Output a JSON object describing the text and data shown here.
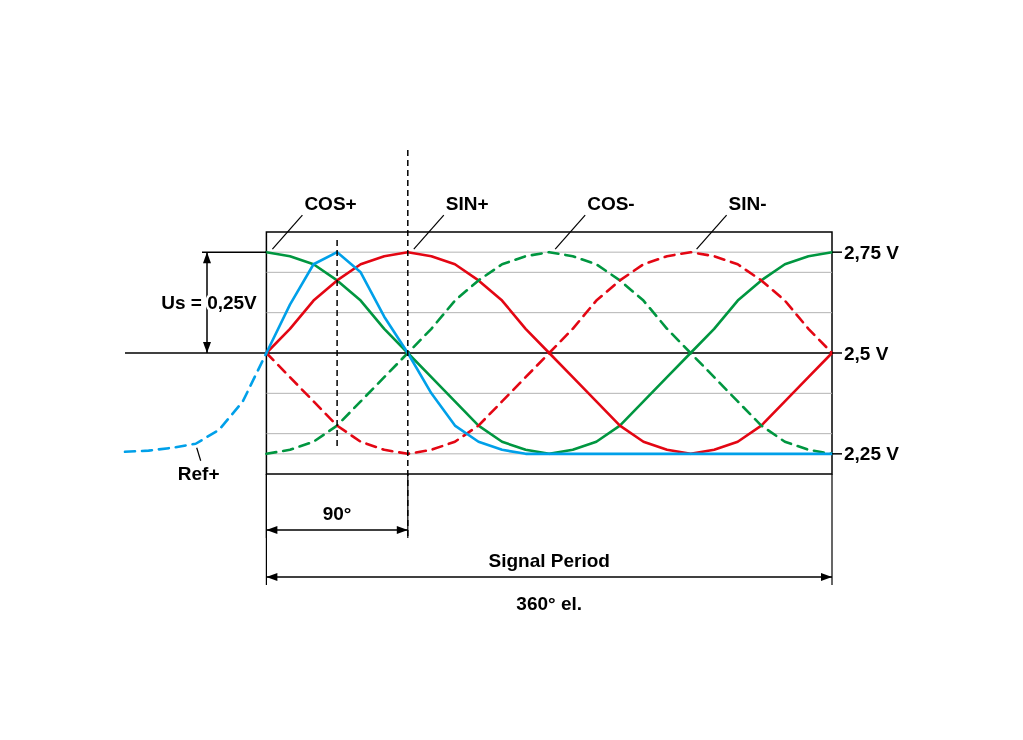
{
  "chart_data": {
    "type": "line",
    "categories": [
      null,
      null,
      null,
      null,
      null,
      null,
      null,
      null,
      null,
      null,
      null,
      null,
      null,
      null,
      null,
      null,
      null,
      null,
      null,
      null,
      null,
      null,
      null,
      null,
      null,
      null,
      null,
      null,
      null,
      null,
      null
    ],
    "ylim": [
      2.2,
      2.8
    ],
    "yticks": [
      {
        "value": 2.25,
        "label": "2,25 V"
      },
      {
        "value": 2.3,
        "label": null
      },
      {
        "value": 2.4,
        "label": null
      },
      {
        "value": 2.5,
        "label": "2,5 V"
      },
      {
        "value": 2.6,
        "label": null
      },
      {
        "value": 2.7,
        "label": null
      },
      {
        "value": 2.75,
        "label": "2,75 V"
      }
    ],
    "tick_labels": "y",
    "grid": "y",
    "series": [
      {
        "name": "COS+",
        "color": "#009640",
        "line_style": "solid",
        "values": [
          null,
          null,
          null,
          null,
          null,
          null,
          2.75,
          2.74,
          2.72,
          2.68,
          2.63,
          2.56,
          2.5,
          2.44,
          2.38,
          2.32,
          2.28,
          2.26,
          2.25,
          2.26,
          2.28,
          2.32,
          2.38,
          2.44,
          2.5,
          2.56,
          2.63,
          2.68,
          2.72,
          2.74,
          2.75
        ]
      },
      {
        "name": "SIN+",
        "color": "#e30613",
        "line_style": "solid",
        "values": [
          null,
          null,
          null,
          null,
          null,
          null,
          2.5,
          2.56,
          2.63,
          2.68,
          2.72,
          2.74,
          2.75,
          2.74,
          2.72,
          2.68,
          2.63,
          2.56,
          2.5,
          2.44,
          2.38,
          2.32,
          2.28,
          2.26,
          2.25,
          2.26,
          2.28,
          2.32,
          2.38,
          2.44,
          2.5
        ]
      },
      {
        "name": "COS-",
        "color": "#009640",
        "line_style": "dashed",
        "values": [
          null,
          null,
          null,
          null,
          null,
          null,
          2.25,
          2.26,
          2.28,
          2.32,
          2.38,
          2.44,
          2.5,
          2.56,
          2.63,
          2.68,
          2.72,
          2.74,
          2.75,
          2.74,
          2.72,
          2.68,
          2.63,
          2.56,
          2.5,
          2.44,
          2.38,
          2.32,
          2.28,
          2.26,
          2.25
        ]
      },
      {
        "name": "SIN-",
        "color": "#e30613",
        "line_style": "dashed",
        "values": [
          null,
          null,
          null,
          null,
          null,
          null,
          2.5,
          2.44,
          2.38,
          2.32,
          2.28,
          2.26,
          2.25,
          2.26,
          2.28,
          2.32,
          2.38,
          2.44,
          2.5,
          2.56,
          2.63,
          2.68,
          2.72,
          2.74,
          2.75,
          2.74,
          2.72,
          2.68,
          2.63,
          2.56,
          2.5
        ]
      },
      {
        "name": "Ref+",
        "color": "#00a0e9",
        "line_style": "dashed",
        "values": [
          2.255,
          2.258,
          2.265,
          2.275,
          2.31,
          2.38,
          2.5,
          null,
          null,
          null,
          null,
          null,
          null,
          null,
          null,
          null,
          null,
          null,
          null,
          null,
          null,
          null,
          null,
          null,
          null,
          null,
          null,
          null,
          null,
          null,
          null
        ]
      },
      {
        "color": "#00a0e9",
        "line_style": "solid",
        "values": [
          null,
          null,
          null,
          null,
          null,
          null,
          2.5,
          2.62,
          2.72,
          2.75,
          2.7,
          2.59,
          2.5,
          2.4,
          2.32,
          2.28,
          2.26,
          2.25,
          2.25,
          2.25,
          2.25,
          2.25,
          2.25,
          2.25,
          2.25,
          2.25,
          2.25,
          2.25,
          2.25,
          2.25,
          2.25
        ]
      }
    ],
    "ref_lines": [
      {
        "axis": "y",
        "value": 2.5,
        "color": "#000000",
        "line_style": "solid"
      }
    ],
    "annotations": [
      "90°",
      "Signal Period",
      "360° el.",
      "Us = 0,25V"
    ]
  }
}
